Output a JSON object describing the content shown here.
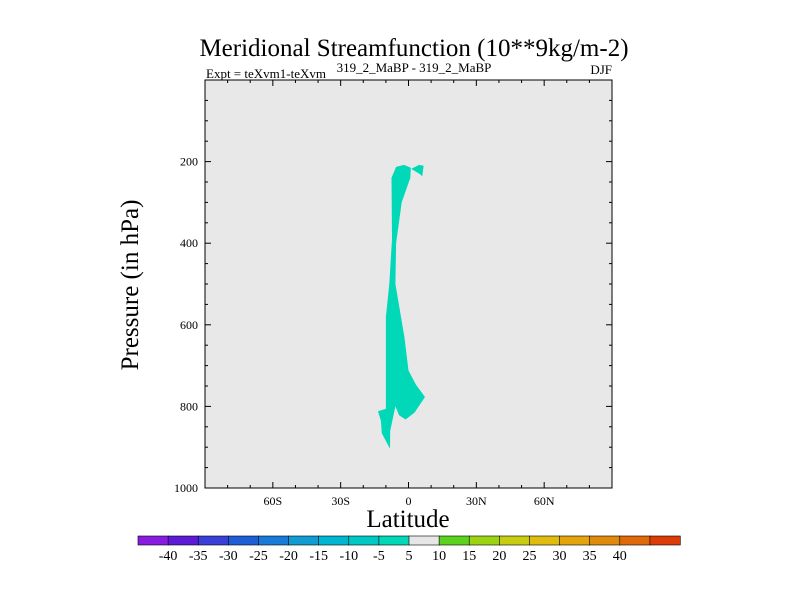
{
  "chart_data": {
    "type": "heatmap",
    "title": "Meridional Streamfunction (10**9kg/m-2)",
    "subtitle_left": "Expt = teXvm1-teXvm",
    "subtitle_center": "319_2_MaBP - 319_2_MaBP",
    "subtitle_right": "DJF",
    "xlabel": "Latitude",
    "ylabel": "Pressure (in hPa)",
    "xlim": [
      -90,
      90
    ],
    "ylim": [
      1000,
      0
    ],
    "x_ticks": [
      {
        "value": -60,
        "label": "60S"
      },
      {
        "value": -30,
        "label": "30S"
      },
      {
        "value": 0,
        "label": "0"
      },
      {
        "value": 30,
        "label": "30N"
      },
      {
        "value": 60,
        "label": "60N"
      }
    ],
    "y_ticks": [
      {
        "value": 200,
        "label": "200"
      },
      {
        "value": 400,
        "label": "400"
      },
      {
        "value": 600,
        "label": "600"
      },
      {
        "value": 800,
        "label": "800"
      },
      {
        "value": 1000,
        "label": "1000"
      }
    ],
    "background_color": "#e8e8e8",
    "filled_regions": [
      {
        "name": "main-cell",
        "color": "#00d8b8",
        "points": [
          [
            -10,
            806
          ],
          [
            -10,
            580
          ],
          [
            -8.5,
            500
          ],
          [
            -7.3,
            390
          ],
          [
            -7.5,
            240
          ],
          [
            -5.5,
            213
          ],
          [
            -2,
            208
          ],
          [
            1,
            215
          ],
          [
            0.8,
            240
          ],
          [
            -3,
            300
          ],
          [
            -5.5,
            400
          ],
          [
            -5.8,
            500
          ],
          [
            -1.8,
            630
          ],
          [
            0,
            712
          ],
          [
            3.3,
            747
          ],
          [
            7.3,
            777
          ],
          [
            2.7,
            815
          ],
          [
            -1.3,
            832
          ],
          [
            -4.1,
            822
          ],
          [
            -5.8,
            800
          ],
          [
            -8.1,
            860
          ],
          [
            -8.2,
            904
          ],
          [
            -11.8,
            866
          ],
          [
            -12.2,
            835
          ],
          [
            -13.5,
            812
          ]
        ]
      },
      {
        "name": "upper-blob",
        "color": "#00d8b8",
        "points": [
          [
            1.2,
            218
          ],
          [
            4.7,
            208
          ],
          [
            6.7,
            210
          ],
          [
            6.1,
            236
          ],
          [
            4.8,
            230
          ],
          [
            2.5,
            222
          ]
        ]
      }
    ],
    "colorbar": {
      "labels": [
        "-40",
        "-35",
        "-30",
        "-25",
        "-20",
        "-15",
        "-10",
        "-5",
        "5",
        "10",
        "15",
        "20",
        "25",
        "30",
        "35",
        "40"
      ],
      "colors": [
        "#8a1ce0",
        "#5e1bd6",
        "#3a3fd8",
        "#1e5ed6",
        "#1a7ad8",
        "#129cd4",
        "#00b6d2",
        "#00c8c4",
        "#00d8b8",
        "#e6e6e6",
        "#5ad21e",
        "#9cd414",
        "#c8cc10",
        "#e0bc0e",
        "#e4a40c",
        "#e08a0c",
        "#e06a0a",
        "#dc3c08"
      ]
    }
  }
}
